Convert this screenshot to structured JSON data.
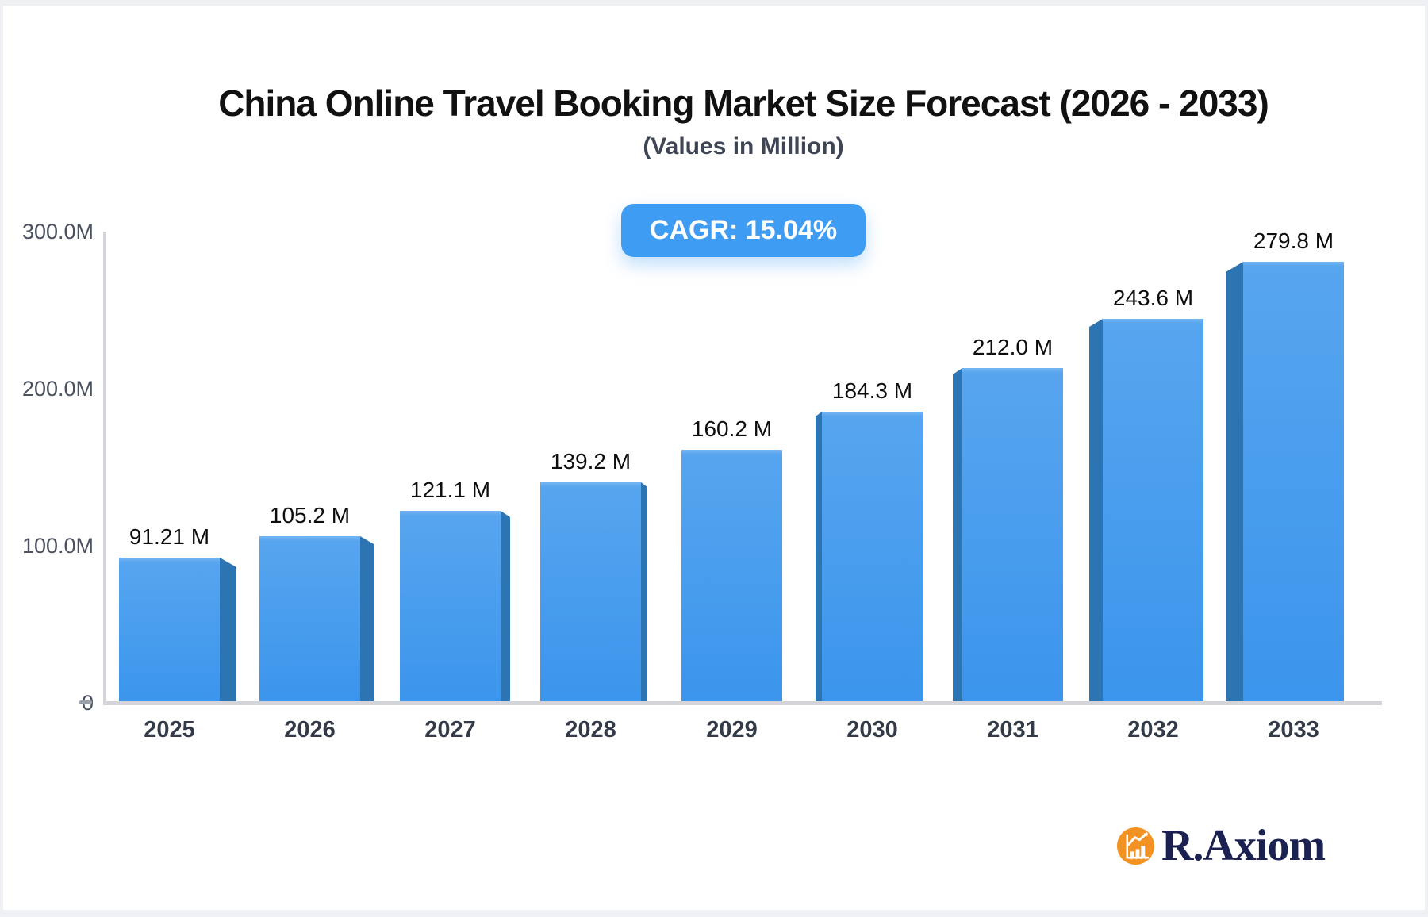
{
  "page": {
    "background_color": "#eef0f3",
    "card_color": "#ffffff"
  },
  "header": {
    "title": "China Online Travel Booking Market Size Forecast (2026 - 2033)",
    "subtitle": "(Values in Million)",
    "cagr_badge": "CAGR: 15.04%",
    "badge_color": "#3e9cf3"
  },
  "chart_data": {
    "type": "bar",
    "title": "China Online Travel Booking Market Size Forecast (2026 - 2033)",
    "subtitle": "(Values in Million)",
    "unit": "Million",
    "cagr": "15.04%",
    "categories": [
      "2025",
      "2026",
      "2027",
      "2028",
      "2029",
      "2030",
      "2031",
      "2032",
      "2033"
    ],
    "values": [
      91.21,
      105.2,
      121.1,
      139.2,
      160.2,
      184.3,
      212.0,
      243.6,
      279.8
    ],
    "value_labels": [
      "91.21 M",
      "105.2 M",
      "121.1 M",
      "139.2 M",
      "160.2 M",
      "184.3 M",
      "212.0 M",
      "243.6 M",
      "279.8 M"
    ],
    "ylim": [
      0,
      300
    ],
    "y_ticks": [
      {
        "value": 0,
        "label": "0"
      },
      {
        "value": 100,
        "label": "100.0M"
      },
      {
        "value": 200,
        "label": "200.0M"
      },
      {
        "value": 300,
        "label": "300.0M"
      }
    ],
    "grid": false,
    "legend": false,
    "bar_color_top": "#57a5ef",
    "bar_color_bottom": "#3b95ec",
    "bar_side_color": "#2d74b3",
    "axis_color": "#d3d5da"
  },
  "branding": {
    "logo_text": "R.Axiom",
    "logo_icon": "bar-chart-icon",
    "logo_circle_color": "#f29222",
    "logo_text_color": "#1b2150"
  }
}
